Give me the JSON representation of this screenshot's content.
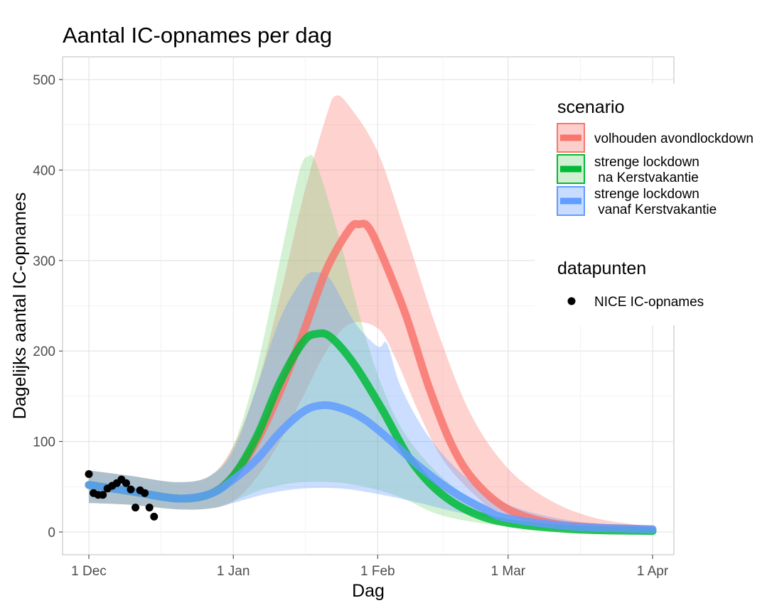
{
  "chart_data": {
    "type": "line",
    "title": "Aantal IC-opnames per dag",
    "xlabel": "Dag",
    "ylabel": "Dagelijks aantal IC-opnames",
    "x_range": [
      "2020-12-01",
      "2021-04-01"
    ],
    "x_ticks": [
      {
        "date": "2020-12-01",
        "label": "1 Dec"
      },
      {
        "date": "2021-01-01",
        "label": "1 Jan"
      },
      {
        "date": "2021-02-01",
        "label": "1 Feb"
      },
      {
        "date": "2021-03-01",
        "label": "1 Mar"
      },
      {
        "date": "2021-04-01",
        "label": "1 Apr"
      }
    ],
    "ylim": [
      0,
      500
    ],
    "y_ticks": [
      0,
      100,
      200,
      300,
      400,
      500
    ],
    "grid": true,
    "legend_position": "right",
    "legend": {
      "scenario_title": "scenario",
      "datapoints_title": "datapunten",
      "datapoints_label": "NICE IC-opnames"
    },
    "series": [
      {
        "name": "volhouden avondlockdown",
        "label_lines": [
          "volhouden avondlockdown"
        ],
        "color": "#f8766d",
        "band_color": "#f8766d",
        "line": [
          [
            "2020-12-01",
            52
          ],
          [
            "2020-12-10",
            45
          ],
          [
            "2020-12-20",
            37
          ],
          [
            "2020-12-27",
            42
          ],
          [
            "2021-01-01",
            62
          ],
          [
            "2021-01-06",
            100
          ],
          [
            "2021-01-11",
            155
          ],
          [
            "2021-01-16",
            220
          ],
          [
            "2021-01-21",
            290
          ],
          [
            "2021-01-26",
            335
          ],
          [
            "2021-01-28",
            340
          ],
          [
            "2021-01-30",
            337
          ],
          [
            "2021-02-02",
            305
          ],
          [
            "2021-02-07",
            240
          ],
          [
            "2021-02-12",
            160
          ],
          [
            "2021-02-17",
            95
          ],
          [
            "2021-02-22",
            55
          ],
          [
            "2021-03-01",
            25
          ],
          [
            "2021-03-10",
            10
          ],
          [
            "2021-03-20",
            5
          ],
          [
            "2021-04-01",
            3
          ]
        ],
        "lower": [
          [
            "2020-12-01",
            32
          ],
          [
            "2020-12-10",
            30
          ],
          [
            "2020-12-20",
            25
          ],
          [
            "2020-12-27",
            26
          ],
          [
            "2021-01-01",
            34
          ],
          [
            "2021-01-06",
            60
          ],
          [
            "2021-01-11",
            100
          ],
          [
            "2021-01-16",
            150
          ],
          [
            "2021-01-21",
            200
          ],
          [
            "2021-01-26",
            230
          ],
          [
            "2021-02-01",
            225
          ],
          [
            "2021-02-05",
            190
          ],
          [
            "2021-02-10",
            130
          ],
          [
            "2021-02-15",
            80
          ],
          [
            "2021-02-22",
            40
          ],
          [
            "2021-03-01",
            15
          ],
          [
            "2021-03-15",
            3
          ],
          [
            "2021-04-01",
            1
          ]
        ],
        "upper": [
          [
            "2020-12-01",
            68
          ],
          [
            "2020-12-10",
            62
          ],
          [
            "2020-12-20",
            55
          ],
          [
            "2020-12-27",
            62
          ],
          [
            "2021-01-01",
            95
          ],
          [
            "2021-01-06",
            160
          ],
          [
            "2021-01-11",
            260
          ],
          [
            "2021-01-16",
            370
          ],
          [
            "2021-01-21",
            460
          ],
          [
            "2021-01-23",
            482
          ],
          [
            "2021-01-26",
            470
          ],
          [
            "2021-02-01",
            420
          ],
          [
            "2021-02-07",
            330
          ],
          [
            "2021-02-14",
            220
          ],
          [
            "2021-02-21",
            130
          ],
          [
            "2021-03-01",
            70
          ],
          [
            "2021-03-10",
            35
          ],
          [
            "2021-03-20",
            15
          ],
          [
            "2021-04-01",
            6
          ]
        ]
      },
      {
        "name": "strenge lockdown na Kerstvakantie",
        "label_lines": [
          "strenge lockdown",
          " na Kerstvakantie"
        ],
        "color": "#00ba38",
        "band_color": "#7cd37c",
        "line": [
          [
            "2020-12-01",
            52
          ],
          [
            "2020-12-10",
            45
          ],
          [
            "2020-12-20",
            37
          ],
          [
            "2020-12-27",
            42
          ],
          [
            "2021-01-01",
            62
          ],
          [
            "2021-01-06",
            105
          ],
          [
            "2021-01-11",
            165
          ],
          [
            "2021-01-16",
            210
          ],
          [
            "2021-01-19",
            219
          ],
          [
            "2021-01-22",
            215
          ],
          [
            "2021-01-27",
            185
          ],
          [
            "2021-02-02",
            135
          ],
          [
            "2021-02-08",
            80
          ],
          [
            "2021-02-14",
            45
          ],
          [
            "2021-02-21",
            22
          ],
          [
            "2021-03-01",
            10
          ],
          [
            "2021-03-15",
            3
          ],
          [
            "2021-04-01",
            1
          ]
        ],
        "lower": [
          [
            "2020-12-01",
            32
          ],
          [
            "2020-12-10",
            30
          ],
          [
            "2020-12-20",
            25
          ],
          [
            "2020-12-27",
            26
          ],
          [
            "2021-01-01",
            34
          ],
          [
            "2021-01-08",
            48
          ],
          [
            "2021-01-16",
            55
          ],
          [
            "2021-01-26",
            53
          ],
          [
            "2021-02-05",
            40
          ],
          [
            "2021-02-15",
            18
          ],
          [
            "2021-03-01",
            6
          ],
          [
            "2021-03-15",
            2
          ],
          [
            "2021-04-01",
            0
          ]
        ],
        "upper": [
          [
            "2020-12-01",
            68
          ],
          [
            "2020-12-10",
            62
          ],
          [
            "2020-12-20",
            55
          ],
          [
            "2020-12-27",
            62
          ],
          [
            "2021-01-01",
            95
          ],
          [
            "2021-01-06",
            180
          ],
          [
            "2021-01-11",
            300
          ],
          [
            "2021-01-15",
            395
          ],
          [
            "2021-01-17",
            415
          ],
          [
            "2021-01-19",
            405
          ],
          [
            "2021-01-24",
            320
          ],
          [
            "2021-01-30",
            205
          ],
          [
            "2021-02-05",
            125
          ],
          [
            "2021-02-12",
            75
          ],
          [
            "2021-02-20",
            40
          ],
          [
            "2021-03-01",
            18
          ],
          [
            "2021-03-15",
            5
          ],
          [
            "2021-04-01",
            2
          ]
        ]
      },
      {
        "name": "strenge lockdown vanaf Kerstvakantie",
        "label_lines": [
          "strenge lockdown",
          " vanaf Kerstvakantie"
        ],
        "color": "#619cff",
        "band_color": "#619cff",
        "line": [
          [
            "2020-12-01",
            52
          ],
          [
            "2020-12-10",
            45
          ],
          [
            "2020-12-20",
            37
          ],
          [
            "2020-12-27",
            42
          ],
          [
            "2021-01-01",
            58
          ],
          [
            "2021-01-06",
            80
          ],
          [
            "2021-01-11",
            110
          ],
          [
            "2021-01-16",
            133
          ],
          [
            "2021-01-20",
            140
          ],
          [
            "2021-01-24",
            137
          ],
          [
            "2021-01-29",
            125
          ],
          [
            "2021-02-04",
            100
          ],
          [
            "2021-02-10",
            72
          ],
          [
            "2021-02-17",
            45
          ],
          [
            "2021-02-24",
            25
          ],
          [
            "2021-03-01",
            15
          ],
          [
            "2021-03-15",
            6
          ],
          [
            "2021-04-01",
            3
          ]
        ],
        "lower": [
          [
            "2020-12-01",
            32
          ],
          [
            "2020-12-10",
            30
          ],
          [
            "2020-12-20",
            25
          ],
          [
            "2020-12-27",
            26
          ],
          [
            "2021-01-01",
            32
          ],
          [
            "2021-01-08",
            42
          ],
          [
            "2021-01-16",
            48
          ],
          [
            "2021-01-24",
            48
          ],
          [
            "2021-02-01",
            42
          ],
          [
            "2021-02-10",
            32
          ],
          [
            "2021-02-18",
            22
          ],
          [
            "2021-03-01",
            12
          ],
          [
            "2021-03-15",
            4
          ],
          [
            "2021-04-01",
            1
          ]
        ],
        "upper": [
          [
            "2020-12-01",
            68
          ],
          [
            "2020-12-10",
            62
          ],
          [
            "2020-12-20",
            55
          ],
          [
            "2020-12-27",
            62
          ],
          [
            "2021-01-01",
            90
          ],
          [
            "2021-01-06",
            160
          ],
          [
            "2021-01-11",
            235
          ],
          [
            "2021-01-16",
            280
          ],
          [
            "2021-01-19",
            287
          ],
          [
            "2021-01-22",
            278
          ],
          [
            "2021-01-27",
            232
          ],
          [
            "2021-02-01",
            205
          ],
          [
            "2021-02-03",
            208
          ],
          [
            "2021-02-06",
            160
          ],
          [
            "2021-02-12",
            105
          ],
          [
            "2021-02-20",
            60
          ],
          [
            "2021-03-01",
            30
          ],
          [
            "2021-03-15",
            12
          ],
          [
            "2021-04-01",
            5
          ]
        ]
      }
    ],
    "points": {
      "name": "NICE IC-opnames",
      "color": "#000000",
      "data": [
        [
          "2020-12-01",
          64
        ],
        [
          "2020-12-02",
          43
        ],
        [
          "2020-12-03",
          41
        ],
        [
          "2020-12-04",
          41
        ],
        [
          "2020-12-05",
          48
        ],
        [
          "2020-12-06",
          51
        ],
        [
          "2020-12-07",
          54
        ],
        [
          "2020-12-08",
          58
        ],
        [
          "2020-12-09",
          54
        ],
        [
          "2020-12-10",
          47
        ],
        [
          "2020-12-11",
          27
        ],
        [
          "2020-12-12",
          46
        ],
        [
          "2020-12-13",
          43
        ],
        [
          "2020-12-14",
          27
        ],
        [
          "2020-12-15",
          17
        ]
      ]
    }
  }
}
